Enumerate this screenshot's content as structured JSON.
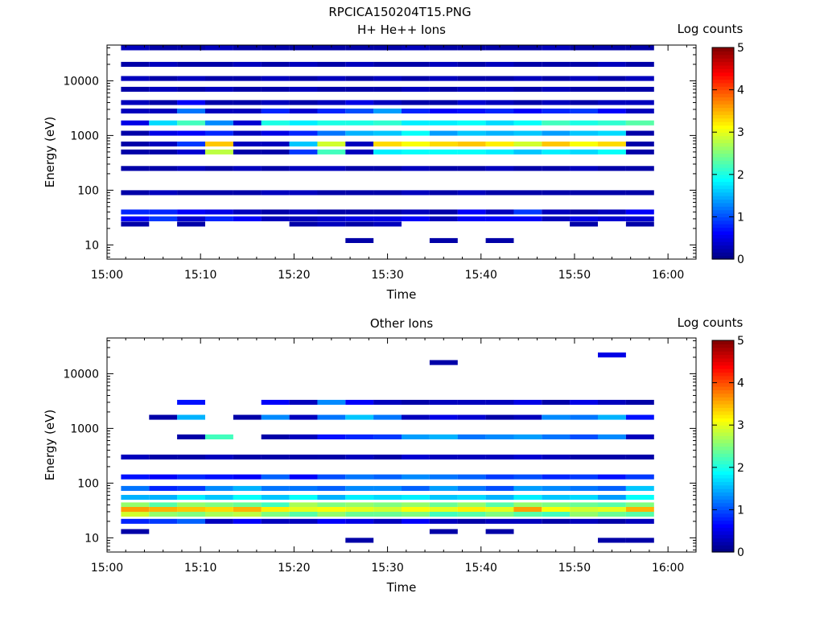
{
  "figure_title": "RPCICA150204T15.PNG",
  "chart_data": [
    {
      "type": "heatmap",
      "title": "H+ He++ Ions",
      "xlabel": "Time",
      "ylabel": "Energy (eV)",
      "x_ticks": [
        "15:00",
        "15:10",
        "15:20",
        "15:30",
        "15:40",
        "15:50",
        "16:00"
      ],
      "y_ticks": [
        "10",
        "100",
        "1000",
        "10000"
      ],
      "y_scale": "log",
      "ylim": [
        5.5,
        45000
      ],
      "xlim": [
        "15:00",
        "16:03"
      ],
      "colorbar": {
        "label": "Log counts",
        "range": [
          0,
          5
        ],
        "ticks": [
          "0",
          "1",
          "2",
          "3",
          "4",
          "5"
        ],
        "colormap": "jet"
      },
      "time_bins": [
        "15:03",
        "15:06",
        "15:09",
        "15:12",
        "15:15",
        "15:18",
        "15:21",
        "15:24",
        "15:27",
        "15:30",
        "15:33",
        "15:36",
        "15:39",
        "15:42",
        "15:45",
        "15:48",
        "15:51",
        "15:54",
        "15:57"
      ],
      "rows": [
        {
          "e": 40000,
          "v": [
            0.3,
            0.2,
            0.2,
            0.3,
            0.2,
            0.2,
            0.2,
            0.2,
            0.2,
            0.2,
            0.3,
            0.2,
            0.2,
            0.2,
            0.2,
            0.3,
            0.2,
            0.2,
            0.2
          ]
        },
        {
          "e": 20000,
          "v": [
            0.2,
            0.3,
            0.2,
            0.2,
            0.3,
            0.2,
            0.3,
            0.2,
            0.3,
            0.2,
            0.2,
            0.3,
            0.2,
            0.3,
            0.2,
            0.2,
            0.2,
            0.3,
            0.2
          ]
        },
        {
          "e": 11000,
          "v": [
            0.3,
            0.2,
            0.3,
            0.2,
            0.2,
            0.3,
            0.2,
            0.3,
            0.2,
            0.3,
            0.2,
            0.3,
            0.2,
            0.2,
            0.3,
            0.2,
            0.3,
            0.2,
            0.3
          ]
        },
        {
          "e": 7000,
          "v": [
            0.2,
            0.3,
            0.2,
            0.3,
            0.2,
            0.2,
            0.3,
            0.2,
            0.2,
            0.2,
            0.3,
            0.2,
            0.3,
            0.3,
            0.2,
            0.3,
            0.2,
            0.2,
            0.2
          ]
        },
        {
          "e": 4000,
          "v": [
            0.3,
            0.2,
            0.6,
            0.2,
            0.2,
            0.3,
            0.2,
            0.3,
            0.5,
            0.3,
            0.2,
            0.2,
            0.4,
            0.3,
            0.2,
            0.3,
            0.2,
            0.3,
            0.3
          ]
        },
        {
          "e": 2800,
          "v": [
            0.3,
            0.3,
            1.2,
            0.3,
            0.3,
            0.8,
            0.4,
            0.8,
            1.0,
            1.4,
            0.8,
            0.6,
            0.7,
            0.8,
            0.6,
            0.8,
            0.9,
            0.6,
            0.3
          ]
        },
        {
          "e": 1700,
          "v": [
            0.5,
            1.7,
            2.2,
            1.3,
            0.4,
            2.0,
            1.8,
            2.0,
            2.0,
            2.1,
            1.8,
            1.8,
            1.9,
            1.7,
            1.9,
            2.2,
            2.0,
            2.1,
            2.3
          ]
        },
        {
          "e": 1100,
          "v": [
            0.2,
            0.5,
            0.6,
            0.8,
            0.3,
            0.5,
            0.8,
            1.2,
            1.5,
            1.6,
            1.9,
            1.4,
            1.6,
            1.5,
            1.6,
            1.4,
            1.6,
            1.7,
            0.2
          ]
        },
        {
          "e": 700,
          "v": [
            0.2,
            0.3,
            0.9,
            3.4,
            0.3,
            0.3,
            1.6,
            2.9,
            0.3,
            3.3,
            3.1,
            3.3,
            3.4,
            3.2,
            2.9,
            3.4,
            3.1,
            3.3,
            0.2
          ]
        },
        {
          "e": 500,
          "v": [
            0.2,
            0.2,
            0.4,
            2.8,
            0.2,
            0.2,
            0.9,
            2.2,
            0.3,
            1.8,
            1.9,
            1.9,
            1.9,
            1.8,
            1.6,
            1.8,
            1.7,
            1.9,
            0.2
          ]
        },
        {
          "e": 250,
          "v": [
            0.2,
            0.2,
            0.3,
            0.2,
            0.3,
            0.2,
            0.3,
            0.3,
            0.2,
            0.2,
            0.3,
            0.2,
            0.2,
            0.3,
            0.2,
            0.2,
            0.3,
            0.2,
            0.2
          ]
        },
        {
          "e": 90,
          "v": [
            0.2,
            0.3,
            0.2,
            0.2,
            0.2,
            0.3,
            0.3,
            0.2,
            0.2,
            0.2,
            0.3,
            0.2,
            0.3,
            0.2,
            0.2,
            0.2,
            0.2,
            0.2,
            0.2
          ]
        },
        {
          "e": 40,
          "v": [
            0.8,
            0.8,
            0.6,
            0.5,
            0.3,
            0.2,
            0.3,
            0.2,
            0.2,
            0.2,
            0.3,
            0.2,
            0.6,
            0.3,
            0.9,
            0.3,
            0.2,
            0.3,
            0.6
          ]
        },
        {
          "e": 30,
          "v": [
            0.6,
            0.9,
            0.4,
            0.8,
            0.6,
            0.3,
            0.3,
            0.4,
            0.5,
            0.5,
            0.6,
            0.3,
            0.6,
            0.6,
            0.6,
            0.3,
            0.5,
            0.4,
            0.4
          ]
        },
        {
          "e": 24,
          "v": [
            0.2,
            0,
            0.2,
            0,
            0,
            0,
            0.2,
            0.3,
            0.2,
            0.3,
            0,
            0,
            0,
            0,
            0,
            0,
            0.2,
            0,
            0.2
          ]
        },
        {
          "e": 12,
          "v": [
            0,
            0,
            0,
            0,
            0,
            0,
            0,
            0,
            0.2,
            0,
            0,
            0.2,
            0,
            0.2,
            0,
            0,
            0,
            0,
            0
          ]
        }
      ]
    },
    {
      "type": "heatmap",
      "title": "Other Ions",
      "xlabel": "Time",
      "ylabel": "Energy (eV)",
      "x_ticks": [
        "15:00",
        "15:10",
        "15:20",
        "15:30",
        "15:40",
        "15:50",
        "16:00"
      ],
      "y_ticks": [
        "10",
        "100",
        "1000",
        "10000"
      ],
      "y_scale": "log",
      "ylim": [
        5.5,
        45000
      ],
      "xlim": [
        "15:00",
        "16:03"
      ],
      "colorbar": {
        "label": "Log counts",
        "range": [
          0,
          5
        ],
        "ticks": [
          "0",
          "1",
          "2",
          "3",
          "4",
          "5"
        ],
        "colormap": "jet"
      },
      "time_bins": [
        "15:03",
        "15:06",
        "15:09",
        "15:12",
        "15:15",
        "15:18",
        "15:21",
        "15:24",
        "15:27",
        "15:30",
        "15:33",
        "15:36",
        "15:39",
        "15:42",
        "15:45",
        "15:48",
        "15:51",
        "15:54",
        "15:57"
      ],
      "rows": [
        {
          "e": 22000,
          "v": [
            0,
            0,
            0,
            0,
            0,
            0,
            0,
            0,
            0,
            0,
            0,
            0,
            0,
            0,
            0,
            0,
            0,
            0.5,
            0
          ]
        },
        {
          "e": 16000,
          "v": [
            0,
            0,
            0,
            0,
            0,
            0,
            0,
            0,
            0,
            0,
            0,
            0.2,
            0,
            0,
            0,
            0,
            0,
            0,
            0
          ]
        },
        {
          "e": 3000,
          "v": [
            0,
            0,
            0.7,
            0,
            0,
            0.6,
            0.3,
            1.3,
            0.6,
            0.3,
            0.2,
            0.3,
            0.3,
            0.3,
            0.5,
            0.2,
            0.5,
            0.3,
            0.2
          ]
        },
        {
          "e": 1600,
          "v": [
            0,
            0.2,
            1.5,
            0,
            0.2,
            1.3,
            0.3,
            1.2,
            1.6,
            1.2,
            0.3,
            0.5,
            0.4,
            0.2,
            0.3,
            1.3,
            1.2,
            1.5,
            0.7
          ]
        },
        {
          "e": 700,
          "v": [
            0,
            0,
            0.2,
            2.2,
            0,
            0.2,
            0.3,
            0.7,
            0.8,
            0.9,
            1.4,
            1.5,
            1.2,
            1.3,
            1.4,
            1.2,
            1.0,
            1.3,
            0.3
          ]
        },
        {
          "e": 300,
          "v": [
            0.3,
            0.2,
            0.2,
            0.3,
            0.2,
            0.2,
            0.2,
            0.2,
            0.3,
            0.2,
            0.4,
            0.3,
            0.3,
            0.3,
            0.4,
            0.3,
            0.2,
            0.2,
            0.2
          ]
        },
        {
          "e": 130,
          "v": [
            0.7,
            0.6,
            0.8,
            0.7,
            0.6,
            1.1,
            0.6,
            1.0,
            1.2,
            1.1,
            1.3,
            1.2,
            1.1,
            0.9,
            1.0,
            0.8,
            0.9,
            0.7,
            0.9
          ]
        },
        {
          "e": 80,
          "v": [
            1.2,
            0.8,
            0.9,
            1.3,
            1.5,
            1.2,
            1.2,
            1.1,
            1.3,
            1.3,
            1.1,
            1.4,
            1.2,
            1.0,
            1.4,
            1.3,
            1.2,
            1.1,
            1.6
          ]
        },
        {
          "e": 55,
          "v": [
            1.5,
            1.5,
            1.8,
            1.6,
            1.9,
            1.6,
            1.9,
            1.5,
            1.8,
            1.7,
            1.8,
            1.6,
            1.7,
            1.5,
            1.8,
            1.6,
            1.7,
            1.4,
            1.9
          ]
        },
        {
          "e": 40,
          "v": [
            2.6,
            2.3,
            2.6,
            2.5,
            2.4,
            2.2,
            2.7,
            2.5,
            2.6,
            2.5,
            2.6,
            2.4,
            2.6,
            2.3,
            2.6,
            2.5,
            2.4,
            2.3,
            2.5
          ]
        },
        {
          "e": 33,
          "v": [
            3.6,
            3.5,
            3.4,
            3.3,
            3.5,
            3.2,
            3.0,
            3.1,
            3.0,
            2.9,
            3.1,
            3.0,
            3.2,
            3.0,
            3.6,
            3.1,
            2.9,
            3.0,
            3.5
          ]
        },
        {
          "e": 27,
          "v": [
            2.9,
            2.6,
            2.5,
            2.7,
            2.8,
            2.5,
            2.3,
            2.6,
            2.4,
            2.4,
            2.5,
            2.2,
            2.3,
            2.5,
            2.3,
            2.2,
            2.6,
            2.4,
            2.3
          ]
        },
        {
          "e": 20,
          "v": [
            0.8,
            0.9,
            1.1,
            0.3,
            0.6,
            0.3,
            0.3,
            0.6,
            0.5,
            0.3,
            0.6,
            0.3,
            0.2,
            0.3,
            0.3,
            0.2,
            0.3,
            0.2,
            0.3
          ]
        },
        {
          "e": 13,
          "v": [
            0.2,
            0,
            0,
            0,
            0,
            0,
            0,
            0,
            0,
            0,
            0,
            0.2,
            0,
            0.2,
            0,
            0,
            0,
            0,
            0
          ]
        },
        {
          "e": 9,
          "v": [
            0,
            0,
            0,
            0,
            0,
            0,
            0,
            0,
            0.2,
            0,
            0,
            0,
            0,
            0,
            0,
            0,
            0,
            0.2,
            0.2
          ]
        }
      ]
    }
  ]
}
